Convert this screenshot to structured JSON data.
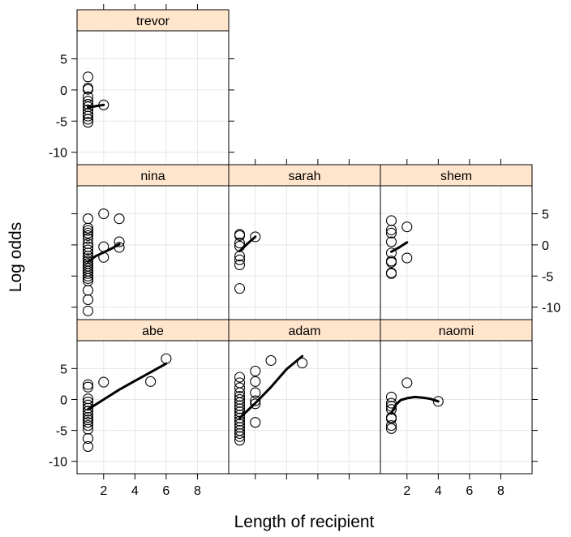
{
  "chart_data": {
    "type": "scatter",
    "layout": "lattice-trellis",
    "xlabel": "Length of recipient",
    "ylabel": "Log odds",
    "xlim": [
      0.3,
      10
    ],
    "ylim": [
      -12,
      9.5
    ],
    "x_ticks": [
      2,
      4,
      6,
      8
    ],
    "y_ticks": [
      5,
      0,
      -5,
      -10
    ],
    "grid": true,
    "strip_color": "#ffe5cc",
    "panels": [
      {
        "name": "trevor",
        "row": 1,
        "col": 1,
        "points": [
          [
            1,
            2.1
          ],
          [
            1,
            0.3
          ],
          [
            1,
            0.1
          ],
          [
            1,
            -1.1
          ],
          [
            1,
            -1.8
          ],
          [
            1,
            -2.3
          ],
          [
            1,
            -2.7
          ],
          [
            1,
            -3.2
          ],
          [
            1,
            -3.8
          ],
          [
            1,
            -4.2
          ],
          [
            1,
            -4.7
          ],
          [
            1,
            -5.2
          ],
          [
            2,
            -2.4
          ]
        ],
        "smooth": [
          [
            1,
            -2.8
          ],
          [
            1.5,
            -2.6
          ],
          [
            2,
            -2.4
          ]
        ]
      },
      {
        "name": "nina",
        "row": 2,
        "col": 1,
        "points": [
          [
            1,
            4.2
          ],
          [
            1,
            2.7
          ],
          [
            1,
            2.3
          ],
          [
            1,
            1.9
          ],
          [
            1,
            1.5
          ],
          [
            1,
            1.0
          ],
          [
            1,
            0.2
          ],
          [
            1,
            -0.3
          ],
          [
            1,
            -0.8
          ],
          [
            1,
            -1.3
          ],
          [
            1,
            -1.8
          ],
          [
            1,
            -2.2
          ],
          [
            1,
            -2.6
          ],
          [
            1,
            -3.0
          ],
          [
            1,
            -3.4
          ],
          [
            1,
            -3.8
          ],
          [
            1,
            -4.2
          ],
          [
            1,
            -4.6
          ],
          [
            1,
            -5.0
          ],
          [
            1,
            -5.4
          ],
          [
            1,
            -5.8
          ],
          [
            1,
            -7.3
          ],
          [
            1,
            -8.8
          ],
          [
            1,
            -10.6
          ],
          [
            2,
            5.0
          ],
          [
            2,
            -0.3
          ],
          [
            2,
            -2.0
          ],
          [
            3,
            4.2
          ],
          [
            3,
            0.5
          ],
          [
            3,
            -0.4
          ]
        ],
        "smooth": [
          [
            1,
            -2.7
          ],
          [
            1.5,
            -1.8
          ],
          [
            2,
            -1.2
          ],
          [
            2.5,
            -0.6
          ],
          [
            3,
            0.1
          ]
        ]
      },
      {
        "name": "sarah",
        "row": 2,
        "col": 2,
        "points": [
          [
            1,
            1.7
          ],
          [
            1,
            1.5
          ],
          [
            1,
            0.3
          ],
          [
            1,
            -0.2
          ],
          [
            1,
            -1.8
          ],
          [
            1,
            -2.4
          ],
          [
            1,
            -3.2
          ],
          [
            1,
            -7.0
          ],
          [
            2,
            1.3
          ]
        ],
        "smooth": [
          [
            1,
            -1.0
          ],
          [
            1.5,
            0.2
          ],
          [
            2,
            1.3
          ]
        ]
      },
      {
        "name": "shem",
        "row": 2,
        "col": 3,
        "points": [
          [
            1,
            3.9
          ],
          [
            1,
            2.4
          ],
          [
            1,
            1.9
          ],
          [
            1,
            0.5
          ],
          [
            1,
            -1.3
          ],
          [
            1,
            -2.6
          ],
          [
            1,
            -2.8
          ],
          [
            1,
            -4.5
          ],
          [
            1,
            -4.6
          ],
          [
            2,
            2.9
          ],
          [
            2,
            -2.1
          ]
        ],
        "smooth": [
          [
            1,
            -1.1
          ],
          [
            1.5,
            -0.4
          ],
          [
            2,
            0.4
          ]
        ]
      },
      {
        "name": "abe",
        "row": 3,
        "col": 1,
        "points": [
          [
            1,
            2.4
          ],
          [
            1,
            2.0
          ],
          [
            1,
            0.1
          ],
          [
            1,
            -0.4
          ],
          [
            1,
            -0.9
          ],
          [
            1,
            -1.4
          ],
          [
            1,
            -1.9
          ],
          [
            1,
            -2.4
          ],
          [
            1,
            -2.9
          ],
          [
            1,
            -3.3
          ],
          [
            1,
            -3.7
          ],
          [
            1,
            -4.2
          ],
          [
            1,
            -4.8
          ],
          [
            1,
            -6.3
          ],
          [
            1,
            -7.6
          ],
          [
            2,
            2.8
          ],
          [
            5,
            2.9
          ],
          [
            6,
            6.6
          ]
        ],
        "smooth": [
          [
            1,
            -1.6
          ],
          [
            2,
            0.0
          ],
          [
            3,
            1.6
          ],
          [
            4,
            3.0
          ],
          [
            5,
            4.4
          ],
          [
            6,
            5.8
          ]
        ]
      },
      {
        "name": "adam",
        "row": 3,
        "col": 2,
        "points": [
          [
            1,
            3.6
          ],
          [
            1,
            2.7
          ],
          [
            1,
            1.9
          ],
          [
            1,
            1.1
          ],
          [
            1,
            0.5
          ],
          [
            1,
            0.0
          ],
          [
            1,
            -0.5
          ],
          [
            1,
            -1.0
          ],
          [
            1,
            -1.5
          ],
          [
            1,
            -2.0
          ],
          [
            1,
            -2.5
          ],
          [
            1,
            -3.0
          ],
          [
            1,
            -3.5
          ],
          [
            1,
            -4.0
          ],
          [
            1,
            -4.5
          ],
          [
            1,
            -5.0
          ],
          [
            1,
            -5.5
          ],
          [
            1,
            -6.0
          ],
          [
            1,
            -6.6
          ],
          [
            2,
            4.6
          ],
          [
            2,
            2.9
          ],
          [
            2,
            1.1
          ],
          [
            2,
            -0.2
          ],
          [
            2,
            -0.7
          ],
          [
            2,
            -3.7
          ],
          [
            3,
            6.3
          ],
          [
            5,
            5.9
          ]
        ],
        "smooth": [
          [
            1,
            -3.0
          ],
          [
            2,
            -0.6
          ],
          [
            3,
            2.0
          ],
          [
            4,
            4.9
          ],
          [
            5,
            7.0
          ]
        ]
      },
      {
        "name": "naomi",
        "row": 3,
        "col": 3,
        "points": [
          [
            1,
            0.4
          ],
          [
            1,
            -0.6
          ],
          [
            1,
            -1.1
          ],
          [
            1,
            -1.6
          ],
          [
            1,
            -2.9
          ],
          [
            1,
            -3.1
          ],
          [
            1,
            -4.2
          ],
          [
            1,
            -4.7
          ],
          [
            2,
            2.7
          ],
          [
            4,
            -0.3
          ]
        ],
        "smooth": [
          [
            1,
            -2.2
          ],
          [
            1.3,
            -0.8
          ],
          [
            1.6,
            -0.1
          ],
          [
            2,
            0.2
          ],
          [
            2.5,
            0.4
          ],
          [
            3,
            0.3
          ],
          [
            3.5,
            0.1
          ],
          [
            4,
            -0.3
          ]
        ]
      }
    ],
    "axis_label_positions": {
      "left_y_ticks_rows": [
        1,
        3
      ],
      "right_y_ticks_rows": [
        2
      ],
      "bottom_x_ticks_cols": [
        1,
        3
      ],
      "x_ticks_hidden_cols": [
        2
      ]
    }
  }
}
